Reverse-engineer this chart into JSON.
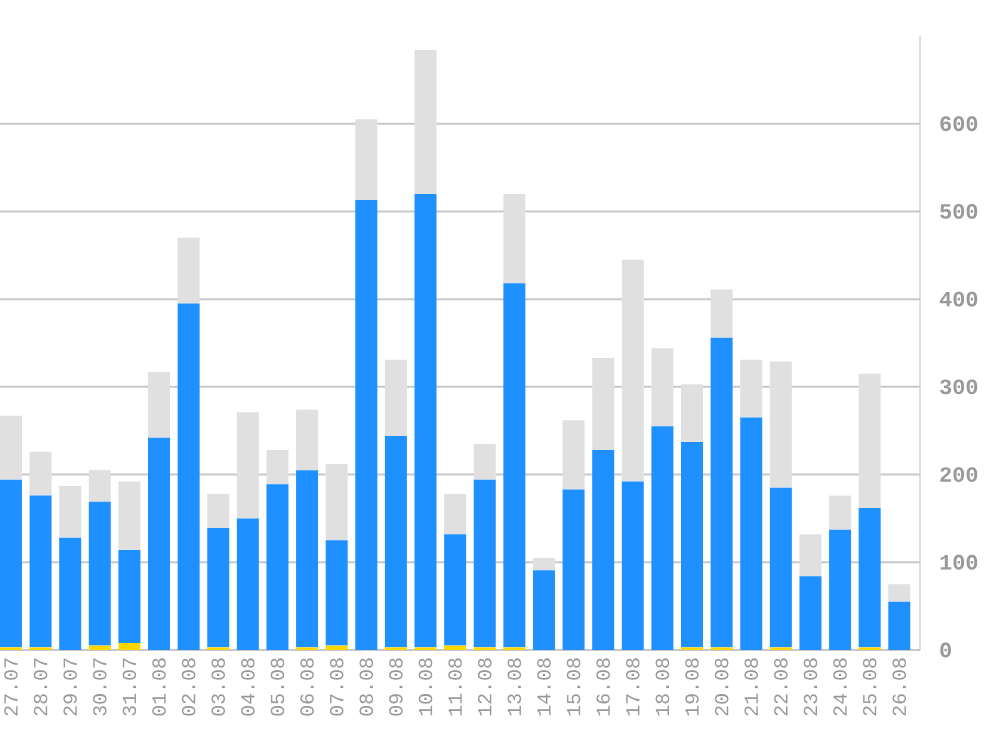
{
  "chart_data": {
    "type": "bar",
    "stacked": true,
    "grid": "y",
    "ylim": [
      0,
      700
    ],
    "yticks": [
      0,
      100,
      200,
      300,
      400,
      500,
      600
    ],
    "categories": [
      "27.07",
      "28.07",
      "29.07",
      "30.07",
      "31.07",
      "01.08",
      "02.08",
      "03.08",
      "04.08",
      "05.08",
      "06.08",
      "07.08",
      "08.08",
      "09.08",
      "10.08",
      "11.08",
      "12.08",
      "13.08",
      "14.08",
      "15.08",
      "16.08",
      "17.08",
      "18.08",
      "19.08",
      "20.08",
      "21.08",
      "22.08",
      "23.08",
      "24.08",
      "25.08",
      "26.08"
    ],
    "series": [
      {
        "color": "#ffd700",
        "values": [
          3,
          3,
          0,
          5,
          8,
          0,
          0,
          3,
          0,
          0,
          3,
          5,
          0,
          3,
          3,
          5,
          3,
          3,
          0,
          0,
          0,
          0,
          0,
          3,
          3,
          0,
          3,
          0,
          0,
          3,
          0
        ]
      },
      {
        "color": "#1e90ff",
        "values": [
          191,
          173,
          128,
          164,
          106,
          242,
          395,
          136,
          150,
          189,
          202,
          120,
          513,
          241,
          517,
          127,
          191,
          415,
          91,
          183,
          228,
          192,
          255,
          234,
          353,
          265,
          182,
          84,
          137,
          159,
          55
        ]
      },
      {
        "color": "#e0e0e0",
        "values": [
          73,
          50,
          59,
          36,
          78,
          75,
          75,
          39,
          121,
          39,
          69,
          87,
          92,
          87,
          164,
          46,
          41,
          102,
          14,
          79,
          105,
          253,
          89,
          66,
          55,
          66,
          144,
          48,
          39,
          153,
          20
        ]
      }
    ]
  }
}
